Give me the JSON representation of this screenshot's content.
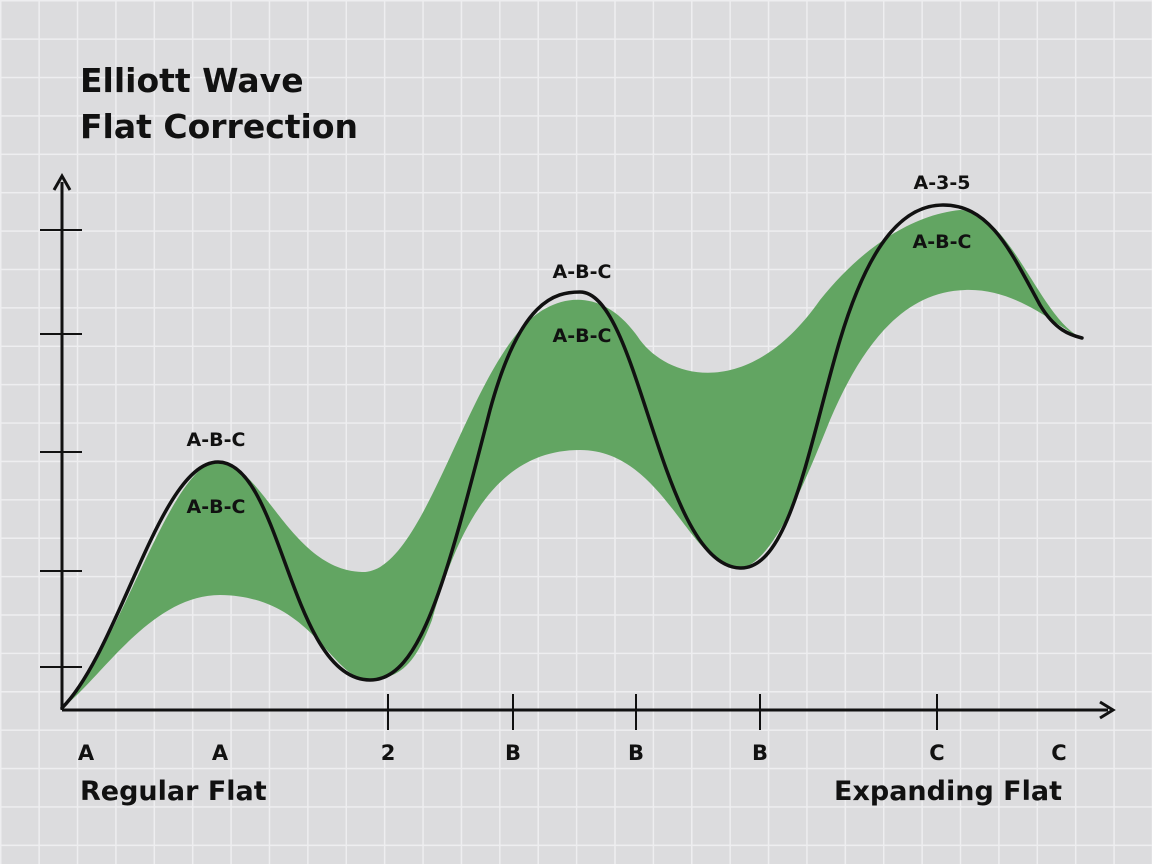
{
  "title": {
    "line1": "Elliott Wave",
    "line2": "Flat Correction"
  },
  "bottom_labels": {
    "left": "Regular Flat",
    "right": "Expanding Flat"
  },
  "x_tick_labels": [
    "A",
    "A",
    "2",
    "B",
    "B",
    "B",
    "C",
    "C"
  ],
  "peak_labels": {
    "peak1_outer": "A-B-C",
    "peak1_inner": "A-B-C",
    "peak2_outer": "A-B-C",
    "peak2_inner": "A-B-C",
    "peak3_outer": "A-3-5",
    "peak3_inner": "A-B-C"
  },
  "colors": {
    "band_fill": "#62a562",
    "line": "#111111",
    "background": "#dcdcde",
    "grid": "#eeeef0"
  }
}
